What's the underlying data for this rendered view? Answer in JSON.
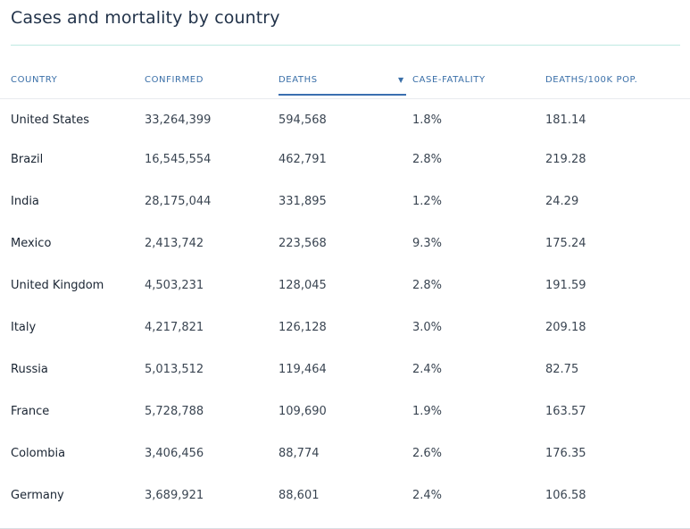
{
  "title": "Cases and mortality by country",
  "columns": {
    "country": "COUNTRY",
    "confirmed": "CONFIRMED",
    "deaths": "DEATHS",
    "cfr": "CASE-FATALITY",
    "per100k": "DEATHS/100K POP."
  },
  "sort": {
    "column": "deaths",
    "direction": "descending",
    "arrow_icon": "triangle-down-icon"
  },
  "colors": {
    "header_text": "#3a6fa8",
    "accent_underline": "#3b6fb0",
    "title_rule": "#bfe9e1"
  },
  "rows": [
    {
      "country": "United States",
      "confirmed": "33,264,399",
      "deaths": "594,568",
      "cfr": "1.8%",
      "per100k": "181.14"
    },
    {
      "country": "Brazil",
      "confirmed": "16,545,554",
      "deaths": "462,791",
      "cfr": "2.8%",
      "per100k": "219.28"
    },
    {
      "country": "India",
      "confirmed": "28,175,044",
      "deaths": "331,895",
      "cfr": "1.2%",
      "per100k": "24.29"
    },
    {
      "country": "Mexico",
      "confirmed": "2,413,742",
      "deaths": "223,568",
      "cfr": "9.3%",
      "per100k": "175.24"
    },
    {
      "country": "United Kingdom",
      "confirmed": "4,503,231",
      "deaths": "128,045",
      "cfr": "2.8%",
      "per100k": "191.59"
    },
    {
      "country": "Italy",
      "confirmed": "4,217,821",
      "deaths": "126,128",
      "cfr": "3.0%",
      "per100k": "209.18"
    },
    {
      "country": "Russia",
      "confirmed": "5,013,512",
      "deaths": "119,464",
      "cfr": "2.4%",
      "per100k": "82.75"
    },
    {
      "country": "France",
      "confirmed": "5,728,788",
      "deaths": "109,690",
      "cfr": "1.9%",
      "per100k": "163.57"
    },
    {
      "country": "Colombia",
      "confirmed": "3,406,456",
      "deaths": "88,774",
      "cfr": "2.6%",
      "per100k": "176.35"
    },
    {
      "country": "Germany",
      "confirmed": "3,689,921",
      "deaths": "88,601",
      "cfr": "2.4%",
      "per100k": "106.58"
    }
  ]
}
